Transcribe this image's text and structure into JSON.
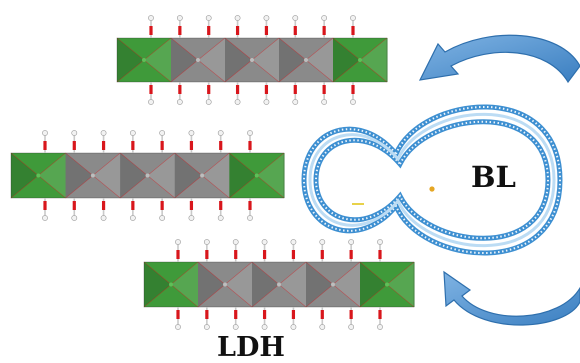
{
  "labels": {
    "bilayer": "BL",
    "layered_double_hydroxide": "LDH"
  },
  "colors": {
    "green_octahedron": "#3f9a3a",
    "green_octahedron_dark": "#2c6e2a",
    "grey_octahedron": "#8a8a8a",
    "grey_octahedron_dark": "#5f5f5f",
    "oxygen": "#d8161c",
    "hydrogen": "#f2f2f2",
    "membrane_blue": "#3d8fd1",
    "arrow_blue": "#5b9bd5",
    "arrow_blue_dark": "#2e6fad",
    "label_text": "#111111"
  },
  "ldh_layers": [
    {
      "name": "top",
      "segments": [
        "green",
        "grey",
        "grey",
        "grey",
        "green"
      ]
    },
    {
      "name": "middle",
      "segments": [
        "green",
        "grey",
        "grey",
        "grey",
        "green"
      ]
    },
    {
      "name": "bottom",
      "segments": [
        "green",
        "grey",
        "grey",
        "grey",
        "green"
      ]
    }
  ],
  "arrows": [
    {
      "name": "upper",
      "direction": "toward-ldh"
    },
    {
      "name": "lower",
      "direction": "toward-ldh"
    }
  ]
}
